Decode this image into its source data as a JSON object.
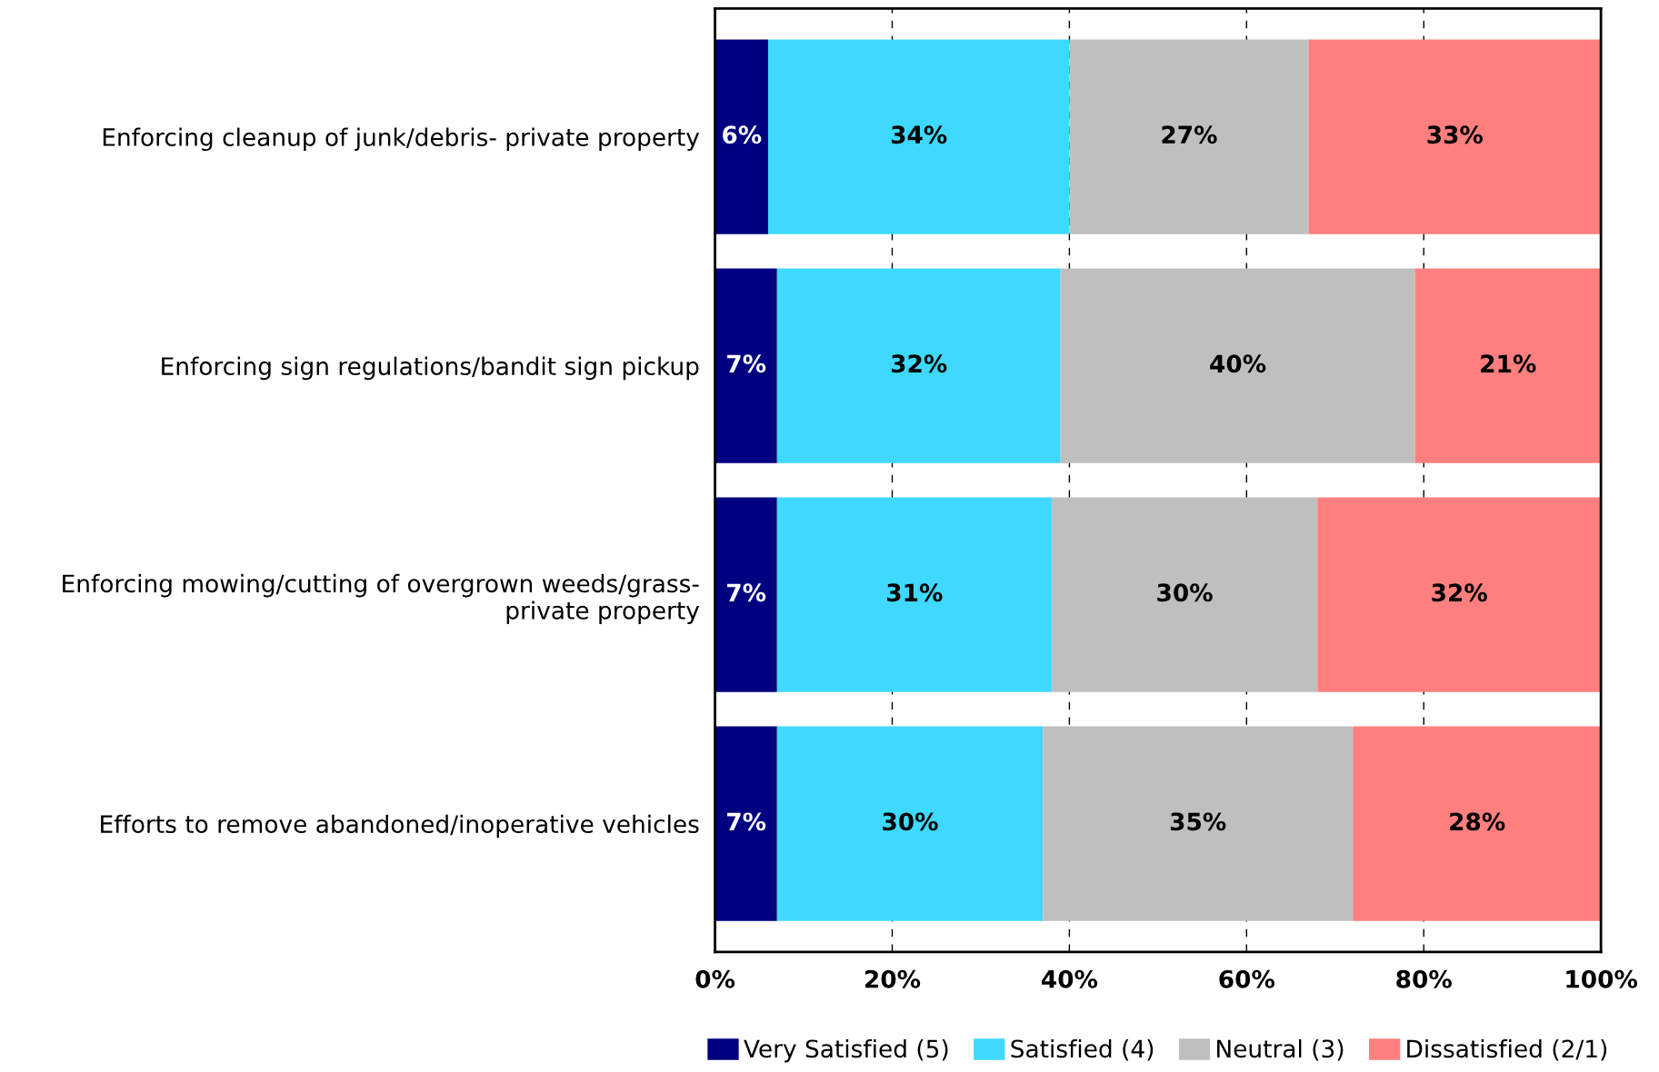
{
  "chart_data": {
    "type": "bar",
    "orientation": "horizontal",
    "stacked": true,
    "categories": [
      "Enforcing cleanup of junk/debris- private property",
      "Enforcing sign regulations/bandit sign pickup",
      "Enforcing mowing/cutting of overgrown weeds/grass-\nprivate property",
      "Efforts to remove abandoned/inoperative vehicles"
    ],
    "series": [
      {
        "name": "Very Satisfied (5)",
        "color": "#000080",
        "values": [
          6,
          7,
          7,
          7
        ],
        "value_labels": [
          "6%",
          "7%",
          "7%",
          "7%"
        ]
      },
      {
        "name": "Satisfied (4)",
        "color": "#3fd9ff",
        "values": [
          34,
          32,
          31,
          30
        ],
        "value_labels": [
          "34%",
          "32%",
          "31%",
          "30%"
        ]
      },
      {
        "name": "Neutral (3)",
        "color": "#bfbfbf",
        "values": [
          27,
          40,
          30,
          35
        ],
        "value_labels": [
          "27%",
          "40%",
          "30%",
          "35%"
        ]
      },
      {
        "name": "Dissatisfied (2/1)",
        "color": "#ff7f7f",
        "values": [
          33,
          21,
          32,
          28
        ],
        "value_labels": [
          "33%",
          "21%",
          "32%",
          "28%"
        ]
      }
    ],
    "xlim": [
      0,
      100
    ],
    "xticks": [
      {
        "value": 0,
        "label": "0%"
      },
      {
        "value": 20,
        "label": "20%"
      },
      {
        "value": 40,
        "label": "40%"
      },
      {
        "value": 60,
        "label": "60%"
      },
      {
        "value": 80,
        "label": "80%"
      },
      {
        "value": 100,
        "label": "100%"
      }
    ],
    "grid": "x",
    "legend": "bottom"
  }
}
